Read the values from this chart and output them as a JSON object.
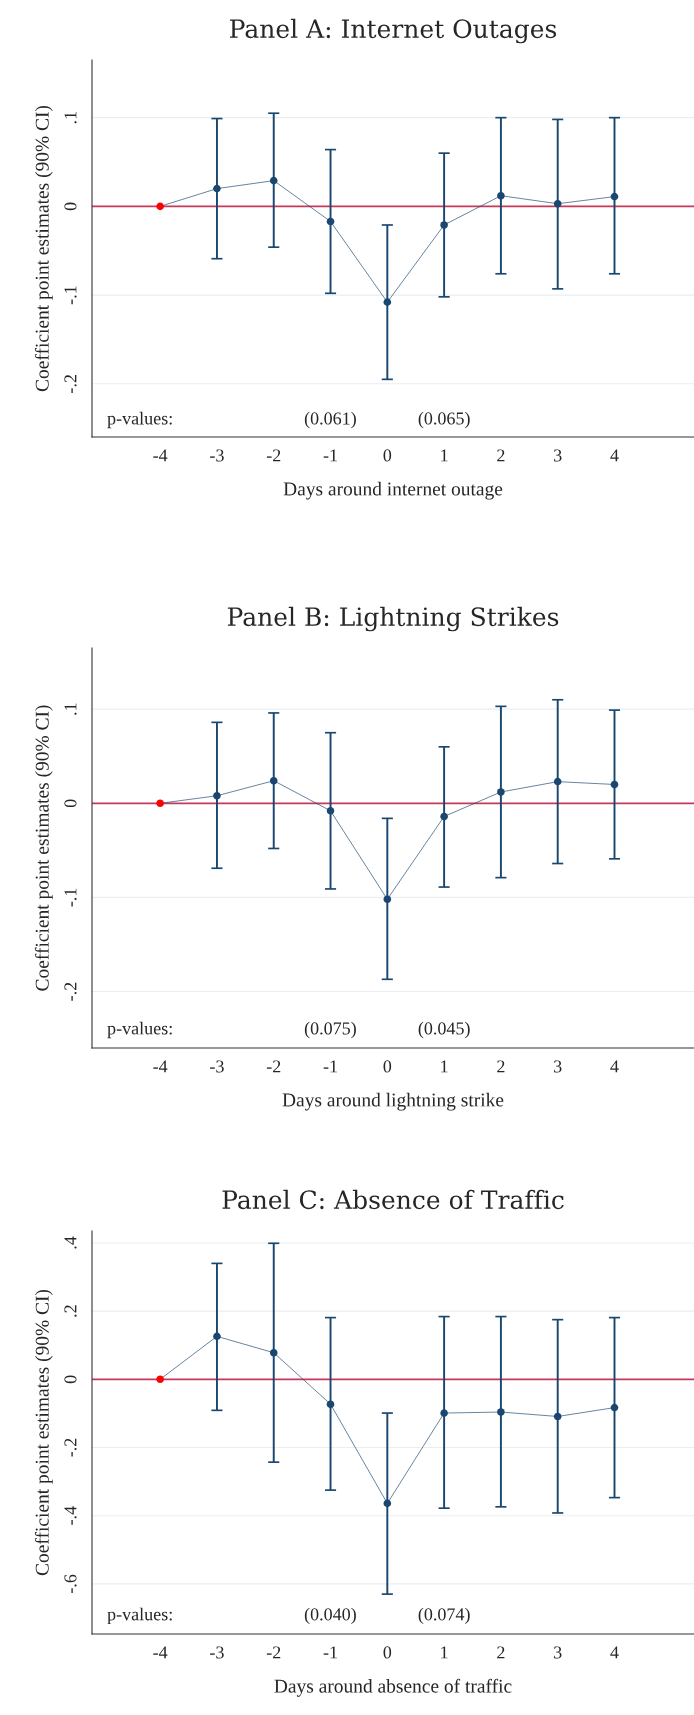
{
  "chart_data": [
    {
      "type": "line",
      "title": "Panel A: Internet Outages",
      "xlabel": "Days around internet outage",
      "ylabel": "Coefficient point estimates (90% CI)",
      "x": [
        -4,
        -3,
        -2,
        -1,
        0,
        1,
        2,
        3,
        4
      ],
      "series": [
        {
          "color": "#1a476f",
          "colors": [
            "#ff0000",
            "#1a476f",
            "#1a476f",
            "#1a476f",
            "#1a476f",
            "#1a476f",
            "#1a476f",
            "#1a476f",
            "#1a476f"
          ],
          "values": [
            0,
            0.02,
            0.029,
            -0.017,
            -0.108,
            -0.021,
            0.012,
            0.003,
            0.011
          ],
          "errors": [
            null,
            [
              -0.059,
              0.099
            ],
            [
              -0.046,
              0.105
            ],
            [
              -0.098,
              0.064
            ],
            [
              -0.195,
              -0.021
            ],
            [
              -0.102,
              0.06
            ],
            [
              -0.076,
              0.1
            ],
            [
              -0.093,
              0.098
            ],
            [
              -0.076,
              0.1
            ]
          ]
        }
      ],
      "marker": "circle",
      "xlim": [
        -5.2,
        5.4
      ],
      "xticks": [
        -4,
        -3,
        -2,
        -1,
        0,
        1,
        2,
        3,
        4
      ],
      "ylim": [
        -0.26,
        0.165
      ],
      "yticks": [
        {
          "value": -0.2,
          "label": "-.2"
        },
        {
          "value": -0.1,
          "label": "-.1"
        },
        0,
        {
          "value": 0.1,
          "label": ".1"
        }
      ],
      "grid": "y",
      "ref_lines": [
        {
          "axis": "y",
          "value": 0,
          "color": "#c8385a"
        }
      ],
      "annotations": [
        "p-values:",
        "(0.061)",
        "(0.065)"
      ]
    },
    {
      "type": "line",
      "title": "Panel B: Lightning Strikes",
      "xlabel": "Days around lightning strike",
      "ylabel": "Coefficient point estimates (90% CI)",
      "x": [
        -4,
        -3,
        -2,
        -1,
        0,
        1,
        2,
        3,
        4
      ],
      "series": [
        {
          "color": "#1a476f",
          "colors": [
            "#ff0000",
            "#1a476f",
            "#1a476f",
            "#1a476f",
            "#1a476f",
            "#1a476f",
            "#1a476f",
            "#1a476f",
            "#1a476f"
          ],
          "values": [
            0,
            0.008,
            0.024,
            -0.008,
            -0.102,
            -0.014,
            0.012,
            0.023,
            0.02
          ],
          "errors": [
            null,
            [
              -0.069,
              0.086
            ],
            [
              -0.048,
              0.096
            ],
            [
              -0.091,
              0.075
            ],
            [
              -0.187,
              -0.016
            ],
            [
              -0.089,
              0.06
            ],
            [
              -0.079,
              0.103
            ],
            [
              -0.064,
              0.11
            ],
            [
              -0.059,
              0.099
            ]
          ]
        }
      ],
      "marker": "circle",
      "xlim": [
        -5.2,
        5.4
      ],
      "xticks": [
        -4,
        -3,
        -2,
        -1,
        0,
        1,
        2,
        3,
        4
      ],
      "ylim": [
        -0.26,
        0.165
      ],
      "yticks": [
        {
          "value": -0.2,
          "label": "-.2"
        },
        {
          "value": -0.1,
          "label": "-.1"
        },
        0,
        {
          "value": 0.1,
          "label": ".1"
        }
      ],
      "grid": "y",
      "ref_lines": [
        {
          "axis": "y",
          "value": 0,
          "color": "#c8385a"
        }
      ],
      "annotations": [
        "p-values:",
        "(0.075)",
        "(0.045)"
      ]
    },
    {
      "type": "line",
      "title": "Panel C: Absence of Traffic",
      "xlabel": "Days around absence of traffic",
      "ylabel": "Coefficient point estimates (90% CI)",
      "x": [
        -4,
        -3,
        -2,
        -1,
        0,
        1,
        2,
        3,
        4
      ],
      "series": [
        {
          "color": "#1a476f",
          "colors": [
            "#ff0000",
            "#1a476f",
            "#1a476f",
            "#1a476f",
            "#1a476f",
            "#1a476f",
            "#1a476f",
            "#1a476f",
            "#1a476f"
          ],
          "values": [
            0,
            0.126,
            0.078,
            -0.073,
            -0.364,
            -0.099,
            -0.096,
            -0.109,
            -0.083
          ],
          "errors": [
            null,
            [
              -0.091,
              0.34
            ],
            [
              -0.243,
              0.399
            ],
            [
              -0.325,
              0.181
            ],
            [
              -0.63,
              -0.099
            ],
            [
              -0.378,
              0.184
            ],
            [
              -0.374,
              0.184
            ],
            [
              -0.392,
              0.175
            ],
            [
              -0.347,
              0.181
            ]
          ]
        }
      ],
      "marker": "circle",
      "xlim": [
        -5.2,
        5.4
      ],
      "xticks": [
        -4,
        -3,
        -2,
        -1,
        0,
        1,
        2,
        3,
        4
      ],
      "ylim": [
        -0.747,
        0.435
      ],
      "yticks": [
        {
          "value": -0.6,
          "label": "-.6"
        },
        {
          "value": -0.4,
          "label": "-.4"
        },
        {
          "value": -0.2,
          "label": "-.2"
        },
        0,
        {
          "value": 0.2,
          "label": ".2"
        },
        {
          "value": 0.4,
          "label": ".4"
        }
      ],
      "grid": "y",
      "ref_lines": [
        {
          "axis": "y",
          "value": 0,
          "color": "#c8385a"
        }
      ],
      "annotations": [
        "p-values:",
        "(0.040)",
        "(0.074)"
      ]
    }
  ]
}
